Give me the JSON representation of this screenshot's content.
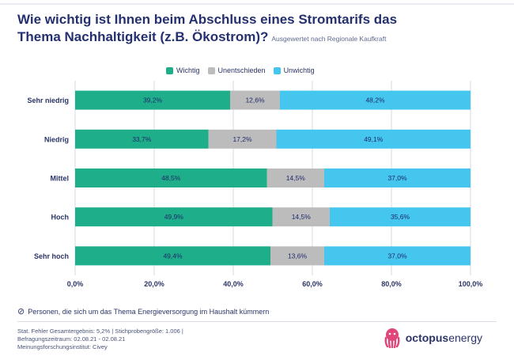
{
  "header": {
    "title_line1": "Wie wichtig ist Ihnen beim Abschluss eines Stromtarifs das",
    "title_line2": "Thema Nachhaltigkeit (z.B. Ökostrom)?",
    "subtitle": "Ausgewertet nach Regionale Kaufkraft"
  },
  "legend": [
    {
      "label": "Wichtig",
      "color": "#1fae8a"
    },
    {
      "label": "Unentschieden",
      "color": "#bcbcbc"
    },
    {
      "label": "Unwichtig",
      "color": "#45c6ee"
    }
  ],
  "chart_data": {
    "type": "bar",
    "orientation": "horizontal",
    "stacked": true,
    "categories": [
      "Sehr niedrig",
      "Niedrig",
      "Mittel",
      "Hoch",
      "Sehr hoch"
    ],
    "series": [
      {
        "name": "Wichtig",
        "values": [
          39.2,
          33.7,
          48.5,
          49.9,
          49.4
        ],
        "labels": [
          "39,2%",
          "33,7%",
          "48,5%",
          "49,9%",
          "49,4%"
        ],
        "color": "#1fae8a"
      },
      {
        "name": "Unentschieden",
        "values": [
          12.6,
          17.2,
          14.5,
          14.5,
          13.6
        ],
        "labels": [
          "12,6%",
          "17,2%",
          "14,5%",
          "14,5%",
          "13,6%"
        ],
        "color": "#bcbcbc"
      },
      {
        "name": "Unwichtig",
        "values": [
          48.2,
          49.1,
          37.0,
          35.6,
          37.0
        ],
        "labels": [
          "48,2%",
          "49,1%",
          "37,0%",
          "35,6%",
          "37,0%"
        ],
        "color": "#45c6ee"
      }
    ],
    "xlim": [
      0,
      100
    ],
    "xticks": [
      0,
      20,
      40,
      60,
      80,
      100
    ],
    "xtick_labels": [
      "0,0%",
      "20,0%",
      "40,0%",
      "60,0%",
      "80,0%",
      "100,0%"
    ],
    "grid": true
  },
  "footer": {
    "note": "Personen, die sich um das Thema Energieversorgung im Haushalt kümmern",
    "meta_line1": "Stat. Fehler Gesamtergebnis: 5,2% | Stichprobengröße: 1.006 |",
    "meta_line2": "Befragungszeitraum: 02.08.21 - 02.08.21",
    "meta_line3": "Meinungsforschungsinstitut: Civey",
    "brand_part1": "octopus",
    "brand_part2": "energy",
    "brand_color": "#e0457b"
  }
}
